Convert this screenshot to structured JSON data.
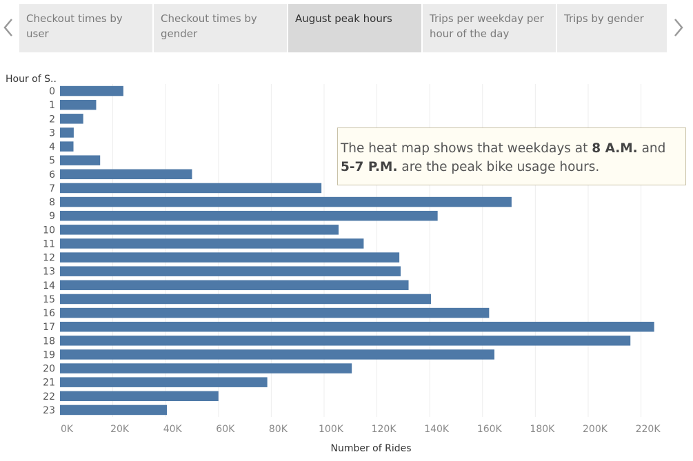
{
  "tabs": [
    {
      "label": "Checkout times by user",
      "active": false
    },
    {
      "label": "Checkout times by gender",
      "active": false
    },
    {
      "label": "August peak hours",
      "active": true
    },
    {
      "label": "Trips per weekday per hour of the day",
      "active": false
    },
    {
      "label": "Trips by gender",
      "active": false
    }
  ],
  "nav": {
    "prev_icon": "chevron-left-icon",
    "next_icon": "chevron-right-icon"
  },
  "annotation": {
    "part1": "The heat map shows that weekdays at ",
    "bold1": "8 A.M.",
    "part2": " and ",
    "bold2": "5-7 P.M.",
    "part3": " are the peak bike usage hours."
  },
  "chart_data": {
    "type": "bar",
    "orientation": "horizontal",
    "ylabel": "Hour of S..",
    "xlabel": "Number of Rides",
    "categories": [
      "0",
      "1",
      "2",
      "3",
      "4",
      "5",
      "6",
      "7",
      "8",
      "9",
      "10",
      "11",
      "12",
      "13",
      "14",
      "15",
      "16",
      "17",
      "18",
      "19",
      "20",
      "21",
      "22",
      "23"
    ],
    "values": [
      24000,
      13700,
      8800,
      5200,
      5100,
      15200,
      50000,
      99000,
      171000,
      143000,
      105500,
      115000,
      128500,
      129000,
      132000,
      140500,
      162500,
      225000,
      216000,
      164500,
      110500,
      78500,
      60000,
      40500
    ],
    "xlim": [
      0,
      235000
    ],
    "xticks": [
      0,
      20000,
      40000,
      60000,
      80000,
      100000,
      120000,
      140000,
      160000,
      180000,
      200000,
      220000
    ],
    "xtick_labels": [
      "0K",
      "20K",
      "40K",
      "60K",
      "80K",
      "100K",
      "120K",
      "140K",
      "160K",
      "180K",
      "200K",
      "220K"
    ],
    "bar_color": "#4e79a7",
    "grid": true
  }
}
